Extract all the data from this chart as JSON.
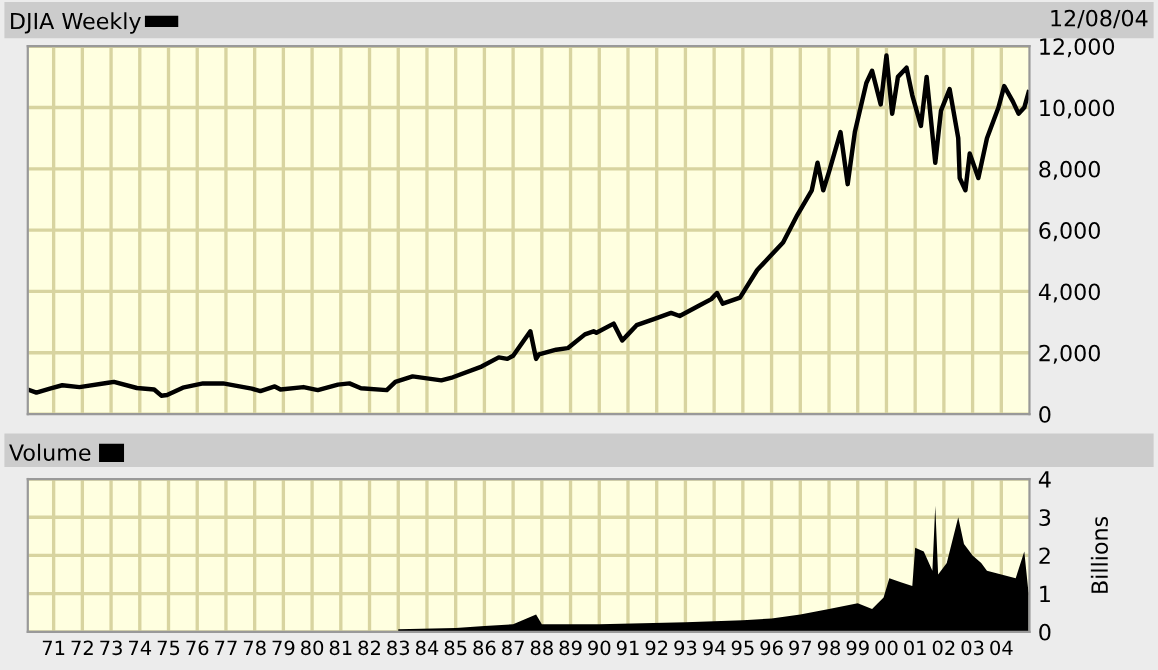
{
  "chart_data": [
    {
      "type": "line",
      "legend": "top left",
      "grid": true,
      "tick_labels": "y",
      "annotations": [
        "12/08/04"
      ],
      "xlim": [
        1970.1,
        2004.98
      ],
      "xticks": [
        {
          "value": 1971,
          "label": null
        },
        {
          "value": 1972,
          "label": null
        },
        {
          "value": 1973,
          "label": null
        },
        {
          "value": 1974,
          "label": null
        },
        {
          "value": 1975,
          "label": null
        },
        {
          "value": 1976,
          "label": null
        },
        {
          "value": 1977,
          "label": null
        },
        {
          "value": 1978,
          "label": null
        },
        {
          "value": 1979,
          "label": null
        },
        {
          "value": 1980,
          "label": null
        },
        {
          "value": 1981,
          "label": null
        },
        {
          "value": 1982,
          "label": null
        },
        {
          "value": 1983,
          "label": null
        },
        {
          "value": 1984,
          "label": null
        },
        {
          "value": 1985,
          "label": null
        },
        {
          "value": 1986,
          "label": null
        },
        {
          "value": 1987,
          "label": null
        },
        {
          "value": 1988,
          "label": null
        },
        {
          "value": 1989,
          "label": null
        },
        {
          "value": 1990,
          "label": null
        },
        {
          "value": 1991,
          "label": null
        },
        {
          "value": 1992,
          "label": null
        },
        {
          "value": 1993,
          "label": null
        },
        {
          "value": 1994,
          "label": null
        },
        {
          "value": 1995,
          "label": null
        },
        {
          "value": 1996,
          "label": null
        },
        {
          "value": 1997,
          "label": null
        },
        {
          "value": 1998,
          "label": null
        },
        {
          "value": 1999,
          "label": null
        },
        {
          "value": 2000,
          "label": null
        },
        {
          "value": 2001,
          "label": null
        },
        {
          "value": 2002,
          "label": null
        },
        {
          "value": 2003,
          "label": null
        },
        {
          "value": 2004,
          "label": null
        }
      ],
      "ylim": [
        0,
        12000
      ],
      "yticks": [
        0,
        {
          "value": 2000,
          "label": "2,000"
        },
        {
          "value": 4000,
          "label": "4,000"
        },
        {
          "value": 6000,
          "label": "6,000"
        },
        {
          "value": 8000,
          "label": "8,000"
        },
        {
          "value": 10000,
          "label": "10,000"
        },
        {
          "value": 12000,
          "label": "12,000"
        }
      ],
      "series": [
        {
          "name": "DJIA Weekly",
          "color": "#000000",
          "x": [
            1970.1,
            1970.4,
            1970.9,
            1971.3,
            1971.9,
            1972.9,
            1973.1,
            1973.9,
            1974.5,
            1974.75,
            1974.95,
            1975.5,
            1976.2,
            1976.9,
            1977.9,
            1978.2,
            1978.7,
            1978.9,
            1979.7,
            1980.2,
            1980.9,
            1981.3,
            1981.7,
            1982.6,
            1982.9,
            1983.5,
            1984.5,
            1984.9,
            1985.9,
            1986.5,
            1986.8,
            1987.0,
            1987.6,
            1987.8,
            1987.9,
            1988.5,
            1988.9,
            1989.5,
            1989.8,
            1989.9,
            1990.5,
            1990.8,
            1991.0,
            1991.3,
            1991.9,
            1992.5,
            1992.8,
            1993.5,
            1993.9,
            1994.1,
            1994.3,
            1994.9,
            1995.5,
            1995.9,
            1996.4,
            1996.9,
            1997.4,
            1997.6,
            1997.8,
            1998.0,
            1998.4,
            1998.65,
            1998.9,
            1999.3,
            1999.5,
            1999.8,
            2000.0,
            2000.2,
            2000.4,
            2000.7,
            2000.9,
            2001.2,
            2001.4,
            2001.7,
            2001.9,
            2002.2,
            2002.5,
            2002.55,
            2002.75,
            2002.9,
            2003.2,
            2003.5,
            2003.9,
            2004.1,
            2004.4,
            2004.6,
            2004.8,
            2004.95
          ],
          "values": [
            800,
            700,
            840,
            940,
            880,
            1020,
            1050,
            850,
            800,
            600,
            620,
            860,
            1000,
            1000,
            830,
            750,
            900,
            800,
            880,
            780,
            960,
            1000,
            840,
            780,
            1050,
            1230,
            1100,
            1200,
            1550,
            1850,
            1800,
            1900,
            2700,
            1800,
            1950,
            2100,
            2150,
            2600,
            2700,
            2650,
            2950,
            2400,
            2600,
            2900,
            3100,
            3300,
            3200,
            3550,
            3750,
            3950,
            3600,
            3800,
            4700,
            5100,
            5600,
            6500,
            7300,
            8200,
            7300,
            7900,
            9200,
            7500,
            9200,
            10800,
            11200,
            10100,
            11700,
            9800,
            11000,
            11300,
            10400,
            9400,
            11000,
            8200,
            9900,
            10600,
            9000,
            7700,
            7300,
            8500,
            7700,
            9000,
            10000,
            10700,
            10200,
            9800,
            10000,
            10500
          ]
        }
      ]
    },
    {
      "type": "area",
      "legend": "top left",
      "grid": true,
      "ylabel": "Billions",
      "xlim": [
        1970.1,
        2004.98
      ],
      "xticks": [
        {
          "value": 1971,
          "label": "71"
        },
        {
          "value": 1972,
          "label": "72"
        },
        {
          "value": 1973,
          "label": "73"
        },
        {
          "value": 1974,
          "label": "74"
        },
        {
          "value": 1975,
          "label": "75"
        },
        {
          "value": 1976,
          "label": "76"
        },
        {
          "value": 1977,
          "label": "77"
        },
        {
          "value": 1978,
          "label": "78"
        },
        {
          "value": 1979,
          "label": "79"
        },
        {
          "value": 1980,
          "label": "80"
        },
        {
          "value": 1981,
          "label": "81"
        },
        {
          "value": 1982,
          "label": "82"
        },
        {
          "value": 1983,
          "label": "83"
        },
        {
          "value": 1984,
          "label": "84"
        },
        {
          "value": 1985,
          "label": "85"
        },
        {
          "value": 1986,
          "label": "86"
        },
        {
          "value": 1987,
          "label": "87"
        },
        {
          "value": 1988,
          "label": "88"
        },
        {
          "value": 1989,
          "label": "89"
        },
        {
          "value": 1990,
          "label": "90"
        },
        {
          "value": 1991,
          "label": "91"
        },
        {
          "value": 1992,
          "label": "92"
        },
        {
          "value": 1993,
          "label": "93"
        },
        {
          "value": 1994,
          "label": "94"
        },
        {
          "value": 1995,
          "label": "95"
        },
        {
          "value": 1996,
          "label": "96"
        },
        {
          "value": 1997,
          "label": "97"
        },
        {
          "value": 1998,
          "label": "98"
        },
        {
          "value": 1999,
          "label": "99"
        },
        {
          "value": 2000,
          "label": "00"
        },
        {
          "value": 2001,
          "label": "01"
        },
        {
          "value": 2002,
          "label": "02"
        },
        {
          "value": 2003,
          "label": "03"
        },
        {
          "value": 2004,
          "label": "04"
        }
      ],
      "ylim": [
        0,
        4
      ],
      "yticks": [
        0,
        1,
        2,
        3,
        4
      ],
      "series": [
        {
          "name": "Volume",
          "color": "#000000",
          "x": [
            1983.0,
            1985.0,
            1986.0,
            1987.0,
            1987.8,
            1988.0,
            1990.0,
            1993.0,
            1995.0,
            1996.0,
            1997.0,
            1998.0,
            1999.0,
            1999.5,
            1999.9,
            2000.1,
            2000.5,
            2000.9,
            2001.0,
            2001.3,
            2001.6,
            2001.7,
            2001.8,
            2002.1,
            2002.5,
            2002.7,
            2003.0,
            2003.3,
            2003.5,
            2004.0,
            2004.5,
            2004.8,
            2004.95
          ],
          "values": [
            0.07,
            0.1,
            0.15,
            0.2,
            0.45,
            0.2,
            0.2,
            0.25,
            0.3,
            0.35,
            0.45,
            0.6,
            0.75,
            0.6,
            0.9,
            1.4,
            1.3,
            1.2,
            2.2,
            2.1,
            1.6,
            3.3,
            1.5,
            1.8,
            3.0,
            2.3,
            2.0,
            1.8,
            1.6,
            1.5,
            1.4,
            2.1,
            1.0
          ]
        }
      ]
    }
  ]
}
